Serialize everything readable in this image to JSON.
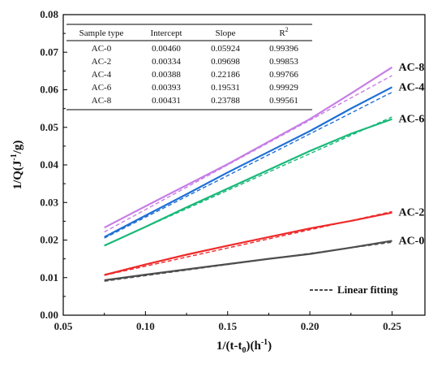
{
  "chart_data": {
    "type": "line",
    "xlabel": "1/(t-t",
    "xlabel_sub": "0",
    "xlabel_tail": ")(h",
    "xlabel_sup": "-1",
    "xlabel_end": ")",
    "ylabel": "1/Q(J",
    "ylabel_sup": "-1",
    "ylabel_tail": "/g)",
    "xlim": [
      0.05,
      0.27
    ],
    "ylim": [
      0.0,
      0.08
    ],
    "xticks": [
      0.05,
      0.1,
      0.15,
      0.2,
      0.25
    ],
    "yticks": [
      0.0,
      0.01,
      0.02,
      0.03,
      0.04,
      0.05,
      0.06,
      0.07,
      0.08
    ],
    "xtick_labels": [
      "0.05",
      "0.10",
      "0.15",
      "0.20",
      "0.25"
    ],
    "ytick_labels": [
      "0.00",
      "0.01",
      "0.02",
      "0.03",
      "0.04",
      "0.05",
      "0.06",
      "0.07",
      "0.08"
    ],
    "legend": {
      "label": "Linear fitting",
      "position": "bottom-right"
    },
    "series": [
      {
        "name": "AC-8",
        "color": "#c77ee6",
        "x": [
          0.075,
          0.1,
          0.125,
          0.15,
          0.175,
          0.2,
          0.225,
          0.25
        ],
        "y": [
          0.0233,
          0.029,
          0.0346,
          0.0402,
          0.0462,
          0.0522,
          0.059,
          0.066
        ],
        "fit": {
          "intercept": 0.00431,
          "slope": 0.23788
        }
      },
      {
        "name": "AC-4",
        "color": "#1f6fd6",
        "x": [
          0.075,
          0.1,
          0.125,
          0.15,
          0.175,
          0.2,
          0.225,
          0.25
        ],
        "y": [
          0.0208,
          0.0265,
          0.0322,
          0.038,
          0.0435,
          0.049,
          0.055,
          0.0607
        ],
        "fit": {
          "intercept": 0.00388,
          "slope": 0.22186
        }
      },
      {
        "name": "AC-6",
        "color": "#19b87a",
        "x": [
          0.075,
          0.1,
          0.125,
          0.15,
          0.175,
          0.2,
          0.225,
          0.25
        ],
        "y": [
          0.0185,
          0.0235,
          0.0287,
          0.0337,
          0.0387,
          0.0437,
          0.0483,
          0.0522
        ],
        "fit": {
          "intercept": 0.00393,
          "slope": 0.19531
        }
      },
      {
        "name": "AC-2",
        "color": "#ee2a2a",
        "x": [
          0.075,
          0.1,
          0.125,
          0.15,
          0.175,
          0.2,
          0.225,
          0.25
        ],
        "y": [
          0.0107,
          0.0135,
          0.0161,
          0.0185,
          0.0208,
          0.0231,
          0.0251,
          0.0273
        ],
        "fit": {
          "intercept": 0.00334,
          "slope": 0.09698
        }
      },
      {
        "name": "AC-0",
        "color": "#4d4d4d",
        "x": [
          0.075,
          0.1,
          0.125,
          0.15,
          0.175,
          0.2,
          0.225,
          0.25
        ],
        "y": [
          0.0093,
          0.0108,
          0.0122,
          0.0136,
          0.015,
          0.0163,
          0.018,
          0.0198
        ],
        "fit": {
          "intercept": 0.0046,
          "slope": 0.05924
        }
      }
    ],
    "table": {
      "headers": [
        "Sample type",
        "Intercept",
        "Slope",
        "R"
      ],
      "header_sup": "2",
      "rows": [
        [
          "AC-0",
          "0.00460",
          "0.05924",
          "0.99396"
        ],
        [
          "AC-2",
          "0.00334",
          "0.09698",
          "0.99853"
        ],
        [
          "AC-4",
          "0.00388",
          "0.22186",
          "0.99766"
        ],
        [
          "AC-6",
          "0.00393",
          "0.19531",
          "0.99929"
        ],
        [
          "AC-8",
          "0.00431",
          "0.23788",
          "0.99561"
        ]
      ]
    }
  }
}
